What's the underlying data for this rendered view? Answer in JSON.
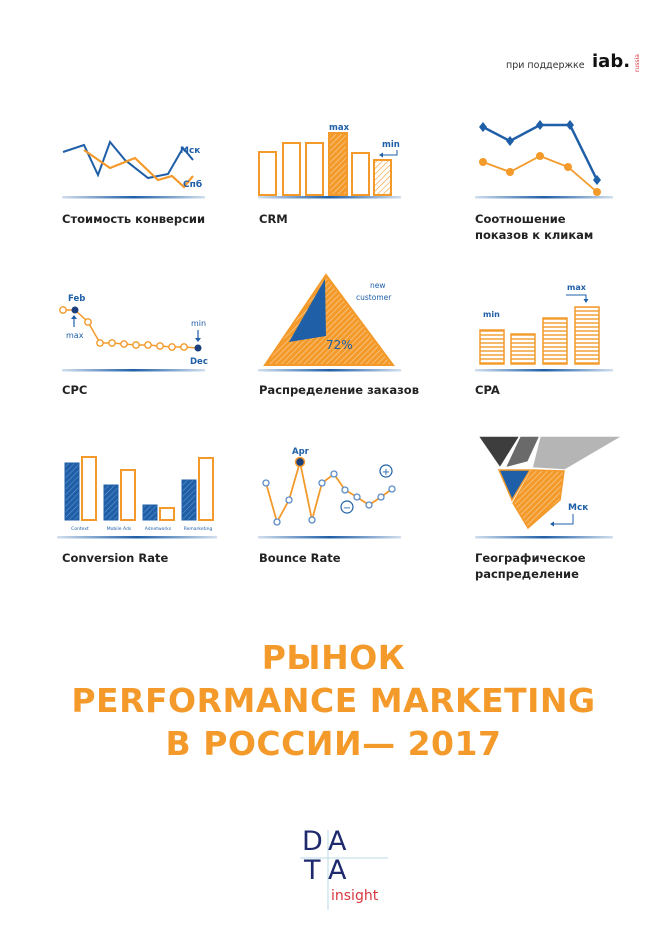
{
  "header": {
    "supported_by": "при поддержке",
    "iab_logo": "iab.",
    "iab_sub": "russia"
  },
  "colors": {
    "orange": "#f39a2b",
    "blue": "#1f5fa8",
    "navy": "#1b3f7a",
    "grey": "#9a9a9a",
    "dark_grey": "#4a4a4a",
    "logo_red": "#d9363e"
  },
  "tiles": [
    {
      "label": "Стоимость конверсии",
      "annotations": {
        "msk": "Мск",
        "spb": "Спб"
      }
    },
    {
      "label": "CRM",
      "annotations": {
        "max": "max",
        "min": "min"
      }
    },
    {
      "label": "Соотношение показов к кликам"
    },
    {
      "label": "CPC",
      "annotations": {
        "feb": "Feb",
        "max": "max",
        "min": "min",
        "dec": "Dec"
      }
    },
    {
      "label": "Распределение заказов",
      "annotations": {
        "new": "new",
        "customer": "customer",
        "share": "72%"
      }
    },
    {
      "label": "CPA",
      "annotations": {
        "min": "min",
        "max": "max"
      }
    },
    {
      "label": "Conversion Rate",
      "annotations": {
        "cats": [
          "Context",
          "Mobile Ads",
          "Adnetworks",
          "Remarketing"
        ]
      }
    },
    {
      "label": "Bounce Rate",
      "annotations": {
        "apr": "Apr",
        "plus": "+",
        "minus": "−"
      }
    },
    {
      "label": "Географическое распределение",
      "annotations": {
        "msk": "Мск"
      }
    }
  ],
  "title": {
    "line1": "РЫНОК",
    "line2": "PERFORMANCE MARKETING",
    "line3": "В РОССИИ— 2017"
  },
  "footer_logo": {
    "d": "D",
    "a1": "A",
    "t": "T",
    "a2": "A",
    "insight": "insight"
  }
}
